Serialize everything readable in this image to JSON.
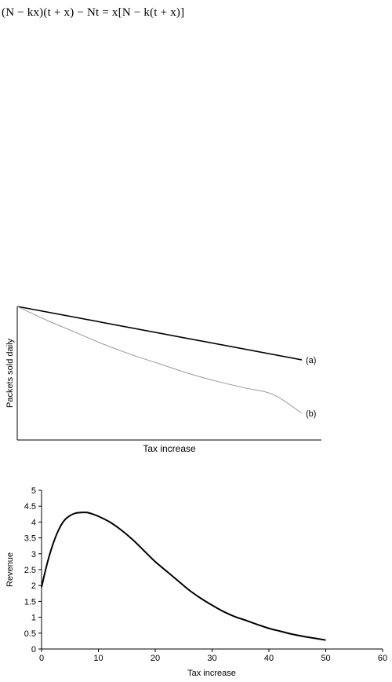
{
  "formula": "(N − kx)(t + x) − Nt = x[N − k(t + x)]",
  "chart_data": [
    {
      "type": "line",
      "title": "",
      "xlabel": "Tax increase",
      "ylabel": "Packets sold daily",
      "xticks": [],
      "yticks": [],
      "series": [
        {
          "name": "(a)",
          "color": "#000000",
          "x": [
            0,
            1
          ],
          "y": [
            1.0,
            0.6
          ]
        },
        {
          "name": "(b)",
          "color": "#999999",
          "x": [
            0,
            0.1,
            0.2,
            0.3,
            0.4,
            0.5,
            0.6,
            0.7,
            0.8,
            0.9,
            1.0
          ],
          "y": [
            1.0,
            0.9,
            0.81,
            0.72,
            0.64,
            0.57,
            0.5,
            0.44,
            0.39,
            0.34,
            0.2
          ]
        }
      ],
      "xlim": [
        0,
        1
      ],
      "ylim": [
        0,
        1
      ],
      "grid": false,
      "legend": "none"
    },
    {
      "type": "line",
      "title": "",
      "xlabel": "Tax increase",
      "ylabel": "Revenue",
      "xticks": [
        "0",
        "10",
        "20",
        "30",
        "40",
        "50",
        "60"
      ],
      "yticks": [
        "0",
        "0.5",
        "1",
        "1.5",
        "2",
        "2.5",
        "3",
        "3.5",
        "4",
        "4.5",
        "5"
      ],
      "xlim": [
        0,
        60
      ],
      "ylim": [
        0,
        5
      ],
      "grid": false,
      "legend": "none",
      "series": [
        {
          "color": "#000000",
          "x": [
            0,
            1,
            2,
            3,
            4,
            5,
            6,
            7,
            8,
            9,
            10,
            12,
            14,
            16,
            18,
            20,
            22,
            24,
            26,
            28,
            30,
            32,
            34,
            36,
            38,
            40,
            42,
            44,
            46,
            48,
            50
          ],
          "y": [
            1.95,
            2.7,
            3.3,
            3.75,
            4.05,
            4.2,
            4.28,
            4.3,
            4.3,
            4.25,
            4.18,
            4.0,
            3.75,
            3.45,
            3.1,
            2.75,
            2.45,
            2.15,
            1.85,
            1.6,
            1.38,
            1.18,
            1.02,
            0.9,
            0.77,
            0.65,
            0.56,
            0.47,
            0.4,
            0.34,
            0.28
          ]
        }
      ]
    }
  ]
}
